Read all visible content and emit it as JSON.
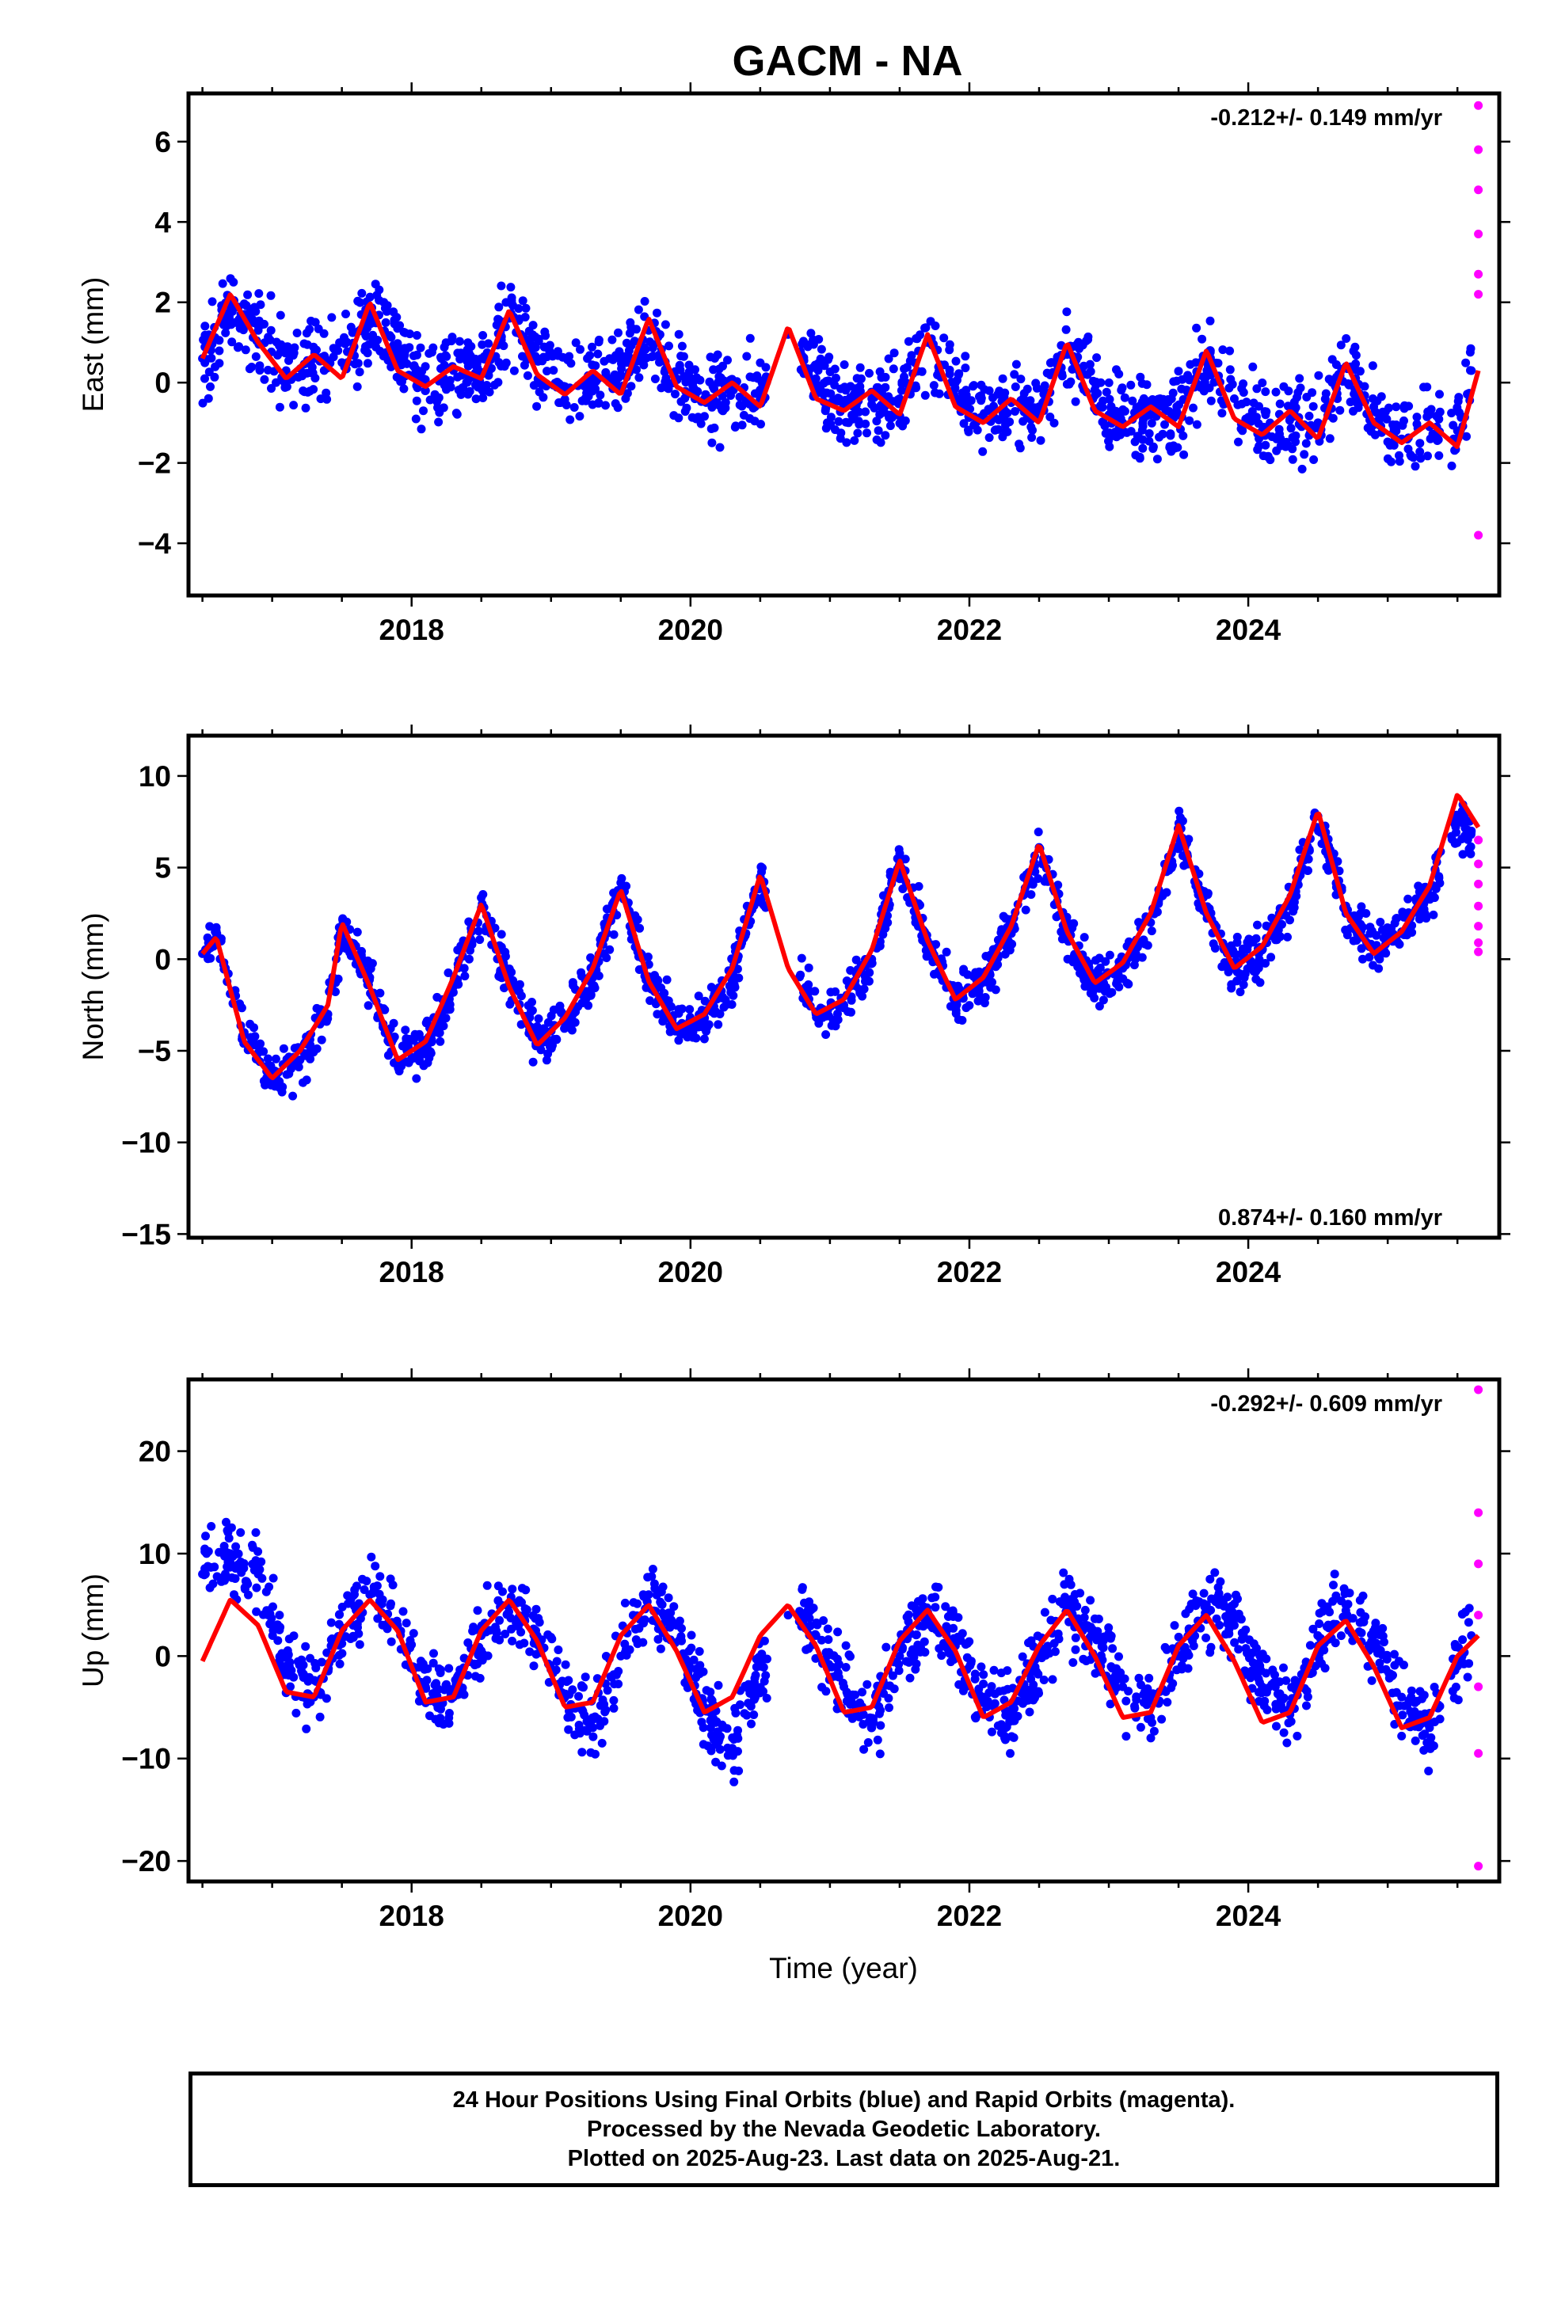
{
  "title": "GACM - NA",
  "colors": {
    "final": "#0000ff",
    "rapid": "#ff00ff",
    "model": "#ff0000"
  },
  "chart_data": [
    {
      "type": "scatter",
      "component": "east",
      "ylabel": "East (mm)",
      "rate_text": "-0.212+/- 0.149 mm/yr",
      "rate_position": "top-right",
      "xlim": [
        2016.4,
        2025.8
      ],
      "ylim": [
        -5.3,
        7.2
      ],
      "xticks": [
        2018,
        2020,
        2022,
        2024
      ],
      "yticks": [
        -4,
        -2,
        0,
        2,
        4,
        6
      ],
      "xtick_labels": [
        "2018",
        "2020",
        "2022",
        "2024"
      ],
      "ytick_labels": [
        "−4",
        "−2",
        "0",
        "2",
        "4",
        "6"
      ],
      "series": [
        {
          "x": [
            2016.5,
            2016.7,
            2016.9,
            2017.1,
            2017.3,
            2017.5,
            2017.7,
            2017.9,
            2018.1,
            2018.3,
            2018.5,
            2018.7,
            2018.9,
            2019.1,
            2019.3,
            2019.5,
            2019.7,
            2019.9,
            2020.1,
            2020.3,
            2020.5,
            2020.7,
            2020.9,
            2021.1,
            2021.3,
            2021.5,
            2021.7,
            2021.9,
            2022.1,
            2022.3,
            2022.5,
            2022.7,
            2022.9,
            2023.1,
            2023.3,
            2023.5,
            2023.7,
            2023.9,
            2024.1,
            2024.3,
            2024.5,
            2024.7,
            2024.9,
            2025.1,
            2025.3,
            2025.5,
            2025.6
          ],
          "y": [
            0.6,
            1.9,
            1.3,
            0.3,
            0.6,
            0.5,
            1.7,
            0.8,
            -0.2,
            0.3,
            0.2,
            1.6,
            0.6,
            -0.1,
            0.2,
            0.2,
            1.3,
            0.1,
            -0.4,
            -0.1,
            -0.3,
            1.2,
            0.1,
            -0.6,
            -0.4,
            -0.4,
            1.0,
            0.0,
            -0.9,
            -0.5,
            -0.6,
            0.7,
            -0.2,
            -1.0,
            -0.8,
            -0.8,
            0.6,
            -0.4,
            -1.2,
            -0.9,
            -1.0,
            0.4,
            -0.6,
            -1.4,
            -1.1,
            -1.2,
            0.3
          ]
        },
        {
          "x": [
            2025.65,
            2025.65,
            2025.65,
            2025.65,
            2025.65,
            2025.65,
            2025.65
          ],
          "y": [
            6.9,
            5.8,
            4.8,
            3.7,
            2.7,
            2.2,
            -3.8
          ]
        },
        {
          "x": [
            2016.5,
            2016.7,
            2016.9,
            2017.1,
            2017.3,
            2017.5,
            2017.7,
            2017.9,
            2018.1,
            2018.3,
            2018.5,
            2018.7,
            2018.9,
            2019.1,
            2019.3,
            2019.5,
            2019.7,
            2019.9,
            2020.1,
            2020.3,
            2020.5,
            2020.7,
            2020.9,
            2021.1,
            2021.3,
            2021.5,
            2021.7,
            2021.9,
            2022.1,
            2022.3,
            2022.5,
            2022.7,
            2022.9,
            2023.1,
            2023.3,
            2023.5,
            2023.7,
            2023.9,
            2024.1,
            2024.3,
            2024.5,
            2024.7,
            2024.9,
            2025.1,
            2025.3,
            2025.5,
            2025.65
          ],
          "y": [
            0.6,
            2.2,
            1.0,
            0.1,
            0.7,
            0.1,
            2.0,
            0.3,
            -0.1,
            0.4,
            0.1,
            1.8,
            0.2,
            -0.3,
            0.3,
            -0.3,
            1.6,
            -0.1,
            -0.5,
            0.0,
            -0.6,
            1.4,
            -0.4,
            -0.7,
            -0.2,
            -0.8,
            1.2,
            -0.6,
            -1.0,
            -0.4,
            -1.0,
            1.0,
            -0.7,
            -1.1,
            -0.6,
            -1.1,
            0.8,
            -0.9,
            -1.3,
            -0.7,
            -1.4,
            0.5,
            -1.0,
            -1.5,
            -1.0,
            -1.6,
            0.3
          ]
        }
      ]
    },
    {
      "type": "scatter",
      "component": "north",
      "ylabel": "North (mm)",
      "rate_text": "0.874+/- 0.160 mm/yr",
      "rate_position": "bottom-right",
      "xlim": [
        2016.4,
        2025.8
      ],
      "ylim": [
        -15.2,
        12.2
      ],
      "xticks": [
        2018,
        2020,
        2022,
        2024
      ],
      "yticks": [
        -15,
        -10,
        -5,
        0,
        5,
        10
      ],
      "xtick_labels": [
        "2018",
        "2020",
        "2022",
        "2024"
      ],
      "ytick_labels": [
        "−15",
        "−10",
        "−5",
        "0",
        "5",
        "10"
      ],
      "series": [
        {
          "x": [
            2016.5,
            2016.6,
            2016.8,
            2017.0,
            2017.2,
            2017.4,
            2017.5,
            2017.7,
            2017.9,
            2018.1,
            2018.3,
            2018.5,
            2018.7,
            2018.9,
            2019.1,
            2019.3,
            2019.5,
            2019.7,
            2019.9,
            2020.1,
            2020.3,
            2020.5,
            2020.9,
            2021.1,
            2021.3,
            2021.5,
            2021.7,
            2021.9,
            2022.1,
            2022.3,
            2022.5,
            2022.7,
            2022.9,
            2023.1,
            2023.3,
            2023.5,
            2023.7,
            2023.9,
            2024.1,
            2024.3,
            2024.5,
            2024.7,
            2024.9,
            2025.1,
            2025.3,
            2025.5,
            2025.6
          ],
          "y": [
            0.3,
            1.2,
            -4.0,
            -6.5,
            -5.5,
            -3.0,
            1.8,
            -1.0,
            -5.5,
            -4.8,
            -1.5,
            2.8,
            -1.0,
            -4.6,
            -3.5,
            -1.0,
            3.8,
            -1.0,
            -3.8,
            -3.2,
            -1.0,
            4.5,
            -3.0,
            -2.5,
            0.0,
            5.2,
            1.0,
            -2.0,
            -1.2,
            1.5,
            6.1,
            1.5,
            -1.3,
            -0.5,
            2.0,
            7.0,
            2.5,
            -0.5,
            0.5,
            3.0,
            7.8,
            2.5,
            0.5,
            1.5,
            3.5,
            7.5,
            7.0
          ]
        },
        {
          "x": [
            2025.65,
            2025.65,
            2025.65,
            2025.65,
            2025.65,
            2025.65,
            2025.65
          ],
          "y": [
            6.5,
            5.2,
            4.1,
            2.9,
            1.8,
            0.9,
            0.4
          ]
        },
        {
          "x": [
            2016.5,
            2016.6,
            2016.8,
            2017.0,
            2017.2,
            2017.4,
            2017.5,
            2017.7,
            2017.9,
            2018.1,
            2018.3,
            2018.5,
            2018.7,
            2018.9,
            2019.1,
            2019.3,
            2019.5,
            2019.7,
            2019.9,
            2020.1,
            2020.3,
            2020.5,
            2020.7,
            2020.9,
            2021.1,
            2021.3,
            2021.5,
            2021.7,
            2021.9,
            2022.1,
            2022.3,
            2022.5,
            2022.7,
            2022.9,
            2023.1,
            2023.3,
            2023.5,
            2023.7,
            2023.9,
            2024.1,
            2024.3,
            2024.5,
            2024.7,
            2024.9,
            2025.1,
            2025.3,
            2025.5,
            2025.65
          ],
          "y": [
            0.3,
            1.2,
            -4.5,
            -6.5,
            -5.0,
            -2.5,
            2.0,
            -1.5,
            -5.5,
            -4.5,
            -1.0,
            3.0,
            -1.5,
            -4.7,
            -3.2,
            -0.5,
            3.8,
            -1.2,
            -3.8,
            -3.0,
            -0.5,
            4.6,
            -0.5,
            -3.0,
            -2.2,
            0.5,
            5.4,
            1.0,
            -2.2,
            -1.0,
            1.8,
            6.3,
            1.5,
            -1.3,
            -0.2,
            2.5,
            7.3,
            2.5,
            -0.5,
            0.7,
            3.5,
            8.1,
            2.5,
            0.3,
            1.5,
            4.0,
            9.0,
            7.2
          ]
        }
      ]
    },
    {
      "type": "scatter",
      "component": "up",
      "ylabel": "Up (mm)",
      "xlabel": "Time (year)",
      "rate_text": "-0.292+/- 0.609 mm/yr",
      "rate_position": "top-right",
      "xlim": [
        2016.4,
        2025.8
      ],
      "ylim": [
        -22,
        27
      ],
      "xticks": [
        2018,
        2020,
        2022,
        2024
      ],
      "yticks": [
        -20,
        -10,
        0,
        10,
        20
      ],
      "xtick_labels": [
        "2018",
        "2020",
        "2022",
        "2024"
      ],
      "ytick_labels": [
        "−20",
        "−10",
        "0",
        "10",
        "20"
      ],
      "series": [
        {
          "x": [
            2016.5,
            2016.7,
            2016.9,
            2017.1,
            2017.3,
            2017.5,
            2017.7,
            2017.9,
            2018.1,
            2018.3,
            2018.5,
            2018.7,
            2018.9,
            2019.1,
            2019.3,
            2019.5,
            2019.7,
            2019.9,
            2020.1,
            2020.3,
            2020.5,
            2020.7,
            2020.9,
            2021.1,
            2021.3,
            2021.5,
            2021.7,
            2021.9,
            2022.1,
            2022.3,
            2022.5,
            2022.7,
            2022.9,
            2023.1,
            2023.3,
            2023.5,
            2023.7,
            2023.9,
            2024.1,
            2024.3,
            2024.5,
            2024.7,
            2024.9,
            2025.1,
            2025.3,
            2025.5,
            2025.6
          ],
          "y": [
            8.0,
            10.0,
            8.0,
            -1.0,
            -4.0,
            2.0,
            6.0,
            3.0,
            -3.0,
            -4.0,
            2.0,
            5.0,
            2.0,
            -4.0,
            -7.0,
            0.0,
            6.0,
            3.0,
            -5.0,
            -9.0,
            -1.0,
            4.0,
            2.0,
            -3.0,
            -7.0,
            0.0,
            4.0,
            1.0,
            -4.0,
            -6.0,
            0.0,
            5.0,
            2.0,
            -3.0,
            -6.0,
            0.0,
            5.0,
            3.0,
            -3.0,
            -5.0,
            1.0,
            5.0,
            2.0,
            -4.0,
            -7.0,
            -1.0,
            2.0
          ]
        },
        {
          "x": [
            2025.65,
            2025.65,
            2025.65,
            2025.65,
            2025.65,
            2025.65,
            2025.65
          ],
          "y": [
            26.0,
            14.0,
            9.0,
            4.0,
            -3.0,
            -9.5,
            -20.5
          ]
        },
        {
          "x": [
            2016.5,
            2016.7,
            2016.9,
            2017.1,
            2017.3,
            2017.5,
            2017.7,
            2017.9,
            2018.1,
            2018.3,
            2018.5,
            2018.7,
            2018.9,
            2019.1,
            2019.3,
            2019.5,
            2019.7,
            2019.9,
            2020.1,
            2020.3,
            2020.5,
            2020.7,
            2020.9,
            2021.1,
            2021.3,
            2021.5,
            2021.7,
            2021.9,
            2022.1,
            2022.3,
            2022.5,
            2022.7,
            2022.9,
            2023.1,
            2023.3,
            2023.5,
            2023.7,
            2023.9,
            2024.1,
            2024.3,
            2024.5,
            2024.7,
            2024.9,
            2025.1,
            2025.3,
            2025.5,
            2025.65
          ],
          "y": [
            -0.5,
            5.5,
            3.0,
            -3.5,
            -4.0,
            2.5,
            5.5,
            2.5,
            -4.5,
            -4.0,
            2.5,
            5.5,
            1.5,
            -5.0,
            -4.5,
            2.0,
            5.0,
            0.5,
            -5.5,
            -4.0,
            2.0,
            5.0,
            1.0,
            -5.5,
            -5.0,
            1.5,
            4.5,
            0.5,
            -6.0,
            -4.5,
            1.0,
            4.5,
            0.0,
            -6.0,
            -5.5,
            1.0,
            4.0,
            -0.5,
            -6.5,
            -5.5,
            1.0,
            3.5,
            -1.0,
            -7.0,
            -6.0,
            0.0,
            2.0
          ]
        }
      ]
    }
  ],
  "caption": [
    "24 Hour Positions Using Final Orbits (blue) and Rapid Orbits (magenta).",
    "Processed by the Nevada Geodetic Laboratory.",
    "Plotted on 2025-Aug-23. Last data on 2025-Aug-21."
  ]
}
